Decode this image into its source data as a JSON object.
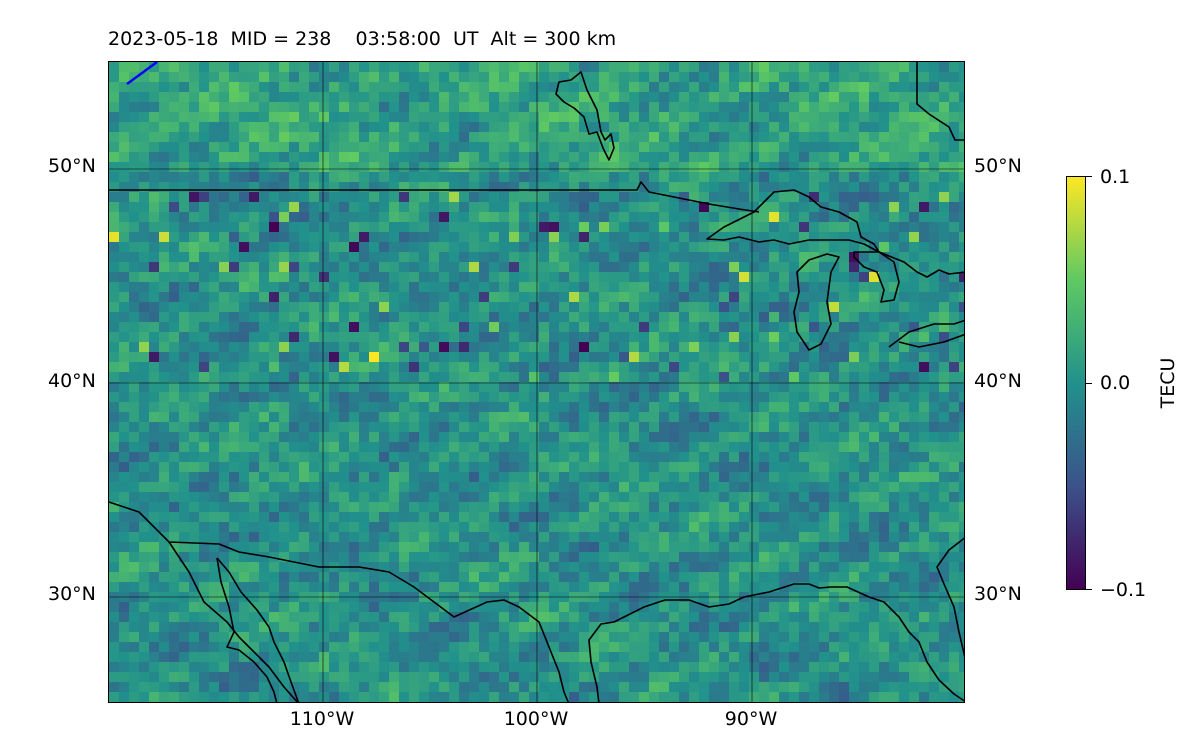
{
  "title": "2023-05-18  MID = 238    03:58:00  UT  Alt = 300 km",
  "map": {
    "projection": "equirectangular",
    "lon_range": [
      -120,
      -80
    ],
    "lat_range": [
      25,
      55
    ],
    "latitude_labels_left": [
      "50°N",
      "40°N",
      "30°N"
    ],
    "latitude_labels_right": [
      "50°N",
      "40°N",
      "30°N"
    ],
    "longitude_labels": [
      "110°W",
      "100°W",
      "90°W"
    ],
    "gridlines": true,
    "coastlines": true,
    "colormap": "viridis",
    "value_range": [
      -0.1,
      0.1
    ]
  },
  "colorbar": {
    "label": "TECU",
    "ticks": [
      "0.1",
      "0.0",
      "−0.1"
    ],
    "colors": [
      "#440154",
      "#3b528b",
      "#21918c",
      "#5ec962",
      "#fde725"
    ]
  }
}
